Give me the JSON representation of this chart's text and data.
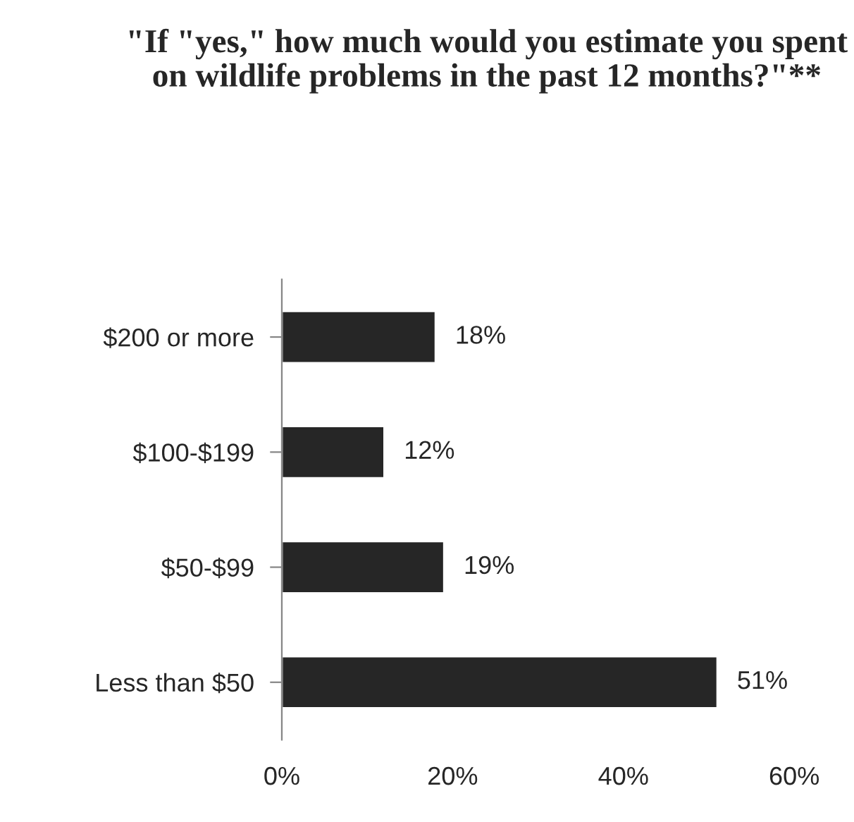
{
  "chart_data": {
    "type": "bar",
    "orientation": "horizontal",
    "title": "\"If \"yes,\" how much would you estimate you spent on wildlife problems in the past 12 months?\"**",
    "categories": [
      "$200 or more",
      "$100-$199",
      "$50-$99",
      "Less than $50"
    ],
    "values": [
      18,
      12,
      19,
      51
    ],
    "color": "#262626",
    "value_labels": [
      "18%",
      "12%",
      "19%",
      "51%"
    ],
    "xlim": [
      0,
      60
    ],
    "xticks": [
      {
        "value": 0,
        "label": "0%"
      },
      {
        "value": 20,
        "label": "20%"
      },
      {
        "value": 40,
        "label": "40%"
      },
      {
        "value": 60,
        "label": "60%"
      }
    ],
    "grid": false,
    "legend": false
  }
}
